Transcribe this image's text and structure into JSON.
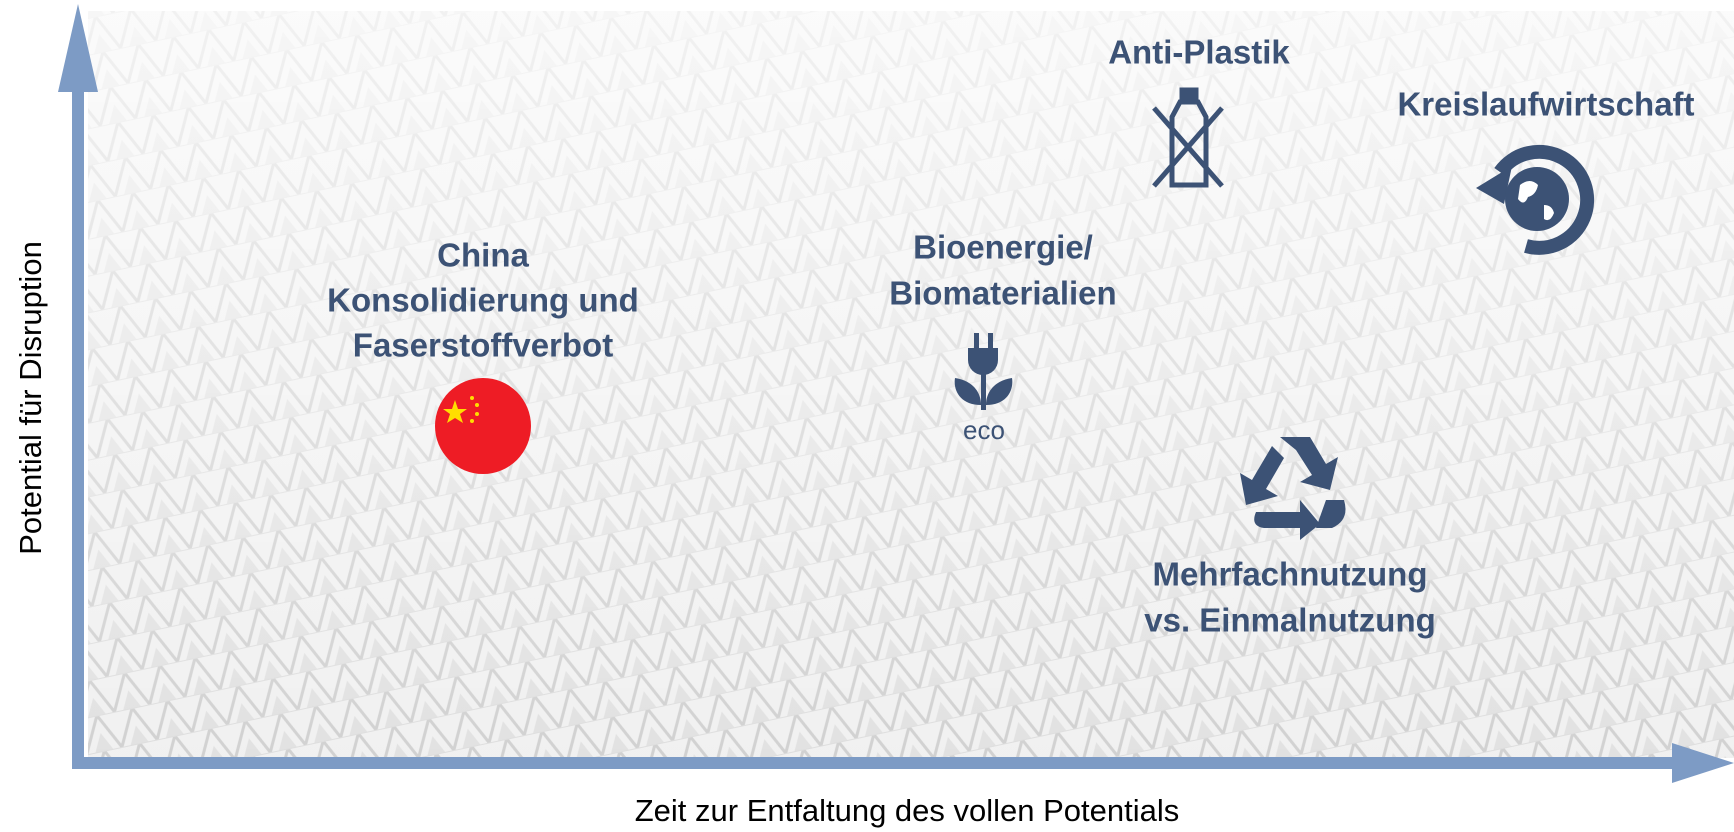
{
  "axes": {
    "y_label": "Potential für Disruption",
    "x_label": "Zeit zur Entfaltung des vollen Potentials"
  },
  "nodes": [
    {
      "label": [
        "China",
        "Konsolidierung und",
        "Faserstoffverbot"
      ]
    },
    {
      "label": [
        "Bioenergie/",
        "Biomaterialien"
      ]
    },
    {
      "label": [
        "Anti-Plastik"
      ]
    },
    {
      "label": [
        "Kreislaufwirtschaft"
      ]
    },
    {
      "label": [
        "Mehrfachnutzung",
        "vs. Einmalnutzung"
      ]
    }
  ]
}
